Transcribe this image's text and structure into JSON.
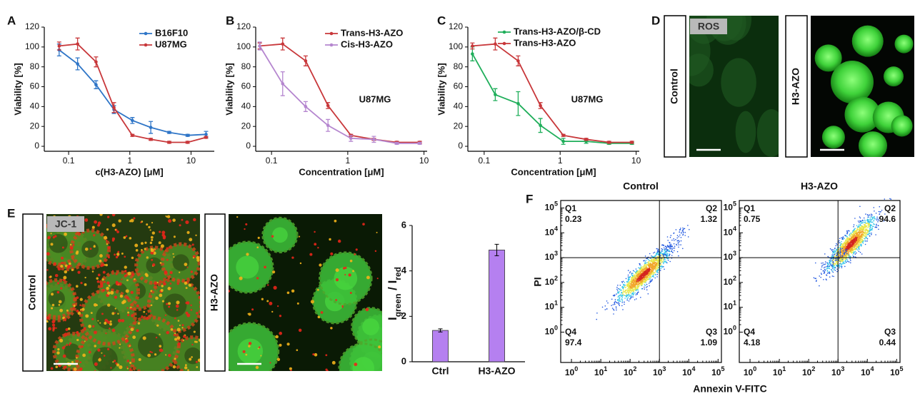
{
  "panel_labels": [
    "A",
    "B",
    "C",
    "D",
    "E",
    "F"
  ],
  "micrographs": {
    "D": {
      "tag": "ROS",
      "rows": [
        "Control",
        "H3-AZO"
      ]
    },
    "E": {
      "tag": "JC-1",
      "rows": [
        "Control",
        "H3-AZO"
      ]
    }
  },
  "chart_data": [
    {
      "type": "line",
      "xlabel": "c(H3-AZO) [μM]",
      "ylabel": "Viability [%]",
      "x": [
        0.07,
        0.14,
        0.28,
        0.55,
        1.1,
        2.2,
        4.4,
        8.8,
        17.6
      ],
      "xscale": "log",
      "xlim": [
        0.04,
        24
      ],
      "xticks": [
        0.1,
        1,
        10
      ],
      "ylim": [
        -5,
        120
      ],
      "yticks": [
        0,
        20,
        40,
        60,
        80,
        100,
        120
      ],
      "legend": "upper right",
      "series": [
        {
          "name": "B16F10",
          "color": "#2e75c7",
          "values": [
            97,
            83,
            62,
            37,
            26,
            19,
            14,
            11,
            12
          ],
          "errors": [
            6,
            6,
            4,
            4,
            3,
            6,
            1,
            1,
            3
          ]
        },
        {
          "name": "U87MG",
          "color": "#c8373a",
          "values": [
            101,
            103,
            85,
            39,
            11,
            7,
            4,
            4,
            9
          ],
          "errors": [
            4,
            6,
            5,
            5,
            1,
            1,
            1,
            1,
            1
          ]
        }
      ]
    },
    {
      "type": "line",
      "xlabel": "Concentration [μM]",
      "ylabel": "Viability [%]",
      "annotation": "U87MG",
      "x": [
        0.07,
        0.14,
        0.28,
        0.55,
        1.1,
        2.2,
        4.4,
        8.8
      ],
      "xscale": "log",
      "xlim": [
        0.062,
        11
      ],
      "xticks": [
        0.1,
        1,
        10
      ],
      "ylim": [
        -5,
        120
      ],
      "yticks": [
        0,
        20,
        40,
        60,
        80,
        100,
        120
      ],
      "legend": "upper right",
      "series": [
        {
          "name": "Trans-H3-AZO",
          "color": "#c8373a",
          "values": [
            101,
            103,
            86,
            41,
            11,
            7,
            4,
            4
          ],
          "errors": [
            3,
            6,
            5,
            3,
            1,
            1,
            1,
            1
          ]
        },
        {
          "name": "Cis-H3-AZO",
          "color": "#b586cf",
          "values": [
            101,
            63,
            40,
            21,
            8,
            7,
            3,
            3
          ],
          "errors": [
            4,
            12,
            5,
            6,
            3,
            3,
            1,
            1
          ]
        }
      ]
    },
    {
      "type": "line",
      "xlabel": "Concentration [μM]",
      "ylabel": "Viability [%]",
      "annotation": "U87MG",
      "x": [
        0.07,
        0.14,
        0.28,
        0.55,
        1.1,
        2.2,
        4.4,
        8.8
      ],
      "xscale": "log",
      "xlim": [
        0.061,
        11
      ],
      "xticks": [
        0.1,
        1,
        10
      ],
      "ylim": [
        -5,
        120
      ],
      "yticks": [
        0,
        20,
        40,
        60,
        80,
        100,
        120
      ],
      "legend": "upper left",
      "series": [
        {
          "name": "Trans-H3-AZO/β-CD",
          "color": "#1fae5a",
          "values": [
            93,
            52,
            43,
            21,
            5,
            5,
            3,
            3
          ],
          "errors": [
            7,
            6,
            12,
            7,
            3,
            2,
            1,
            1
          ]
        },
        {
          "name": "Trans-H3-AZO",
          "color": "#c8373a",
          "values": [
            101,
            103,
            86,
            41,
            11,
            7,
            4,
            4
          ],
          "errors": [
            3,
            6,
            5,
            3,
            1,
            1,
            1,
            1
          ]
        }
      ]
    },
    {
      "type": "bar",
      "ylabel": [
        "I",
        "green",
        " / I",
        "red"
      ],
      "categories": [
        "Ctrl",
        "H3-AZO"
      ],
      "values": [
        1.38,
        4.92
      ],
      "errors": [
        0.07,
        0.25
      ],
      "color": "#b580f0",
      "ylim": [
        0,
        6
      ],
      "yticks": [
        0,
        2,
        4,
        6
      ]
    },
    {
      "type": "flow",
      "title": "Control",
      "xlabel": "Annexin V-FITC",
      "ylabel": "PI",
      "xscale": "log",
      "yscale": "log",
      "xlim": [
        0.43,
        130000
      ],
      "ylim": [
        0.06,
        200000
      ],
      "xticks": [
        {
          "value": 1,
          "label": "10",
          "sup": "0"
        },
        {
          "value": 10,
          "label": "10",
          "sup": "1"
        },
        {
          "value": 100,
          "label": "10",
          "sup": "2"
        },
        {
          "value": 1000,
          "label": "10",
          "sup": "3"
        },
        {
          "value": 10000,
          "label": "10",
          "sup": "4"
        },
        {
          "value": 100000,
          "label": "10",
          "sup": "5"
        }
      ],
      "yticks": [
        {
          "value": 1,
          "label": "10",
          "sup": "0"
        },
        {
          "value": 10,
          "label": "10",
          "sup": "1"
        },
        {
          "value": 100,
          "label": "10",
          "sup": "2"
        },
        {
          "value": 1000,
          "label": "10",
          "sup": "3"
        },
        {
          "value": 10000,
          "label": "10",
          "sup": "4"
        },
        {
          "value": 100000,
          "label": "10",
          "sup": "5"
        }
      ],
      "gate": [
        1000,
        1000
      ],
      "quadrants": [
        {
          "name": "Q1",
          "value": 0.23
        },
        {
          "name": "Q2",
          "value": 1.32
        },
        {
          "name": "Q4",
          "value": 97.4
        },
        {
          "name": "Q3",
          "value": 1.09
        }
      ]
    },
    {
      "type": "flow",
      "title": "H3-AZO",
      "xscale": "log",
      "yscale": "log",
      "xlim": [
        0.43,
        130000
      ],
      "ylim": [
        0.06,
        200000
      ],
      "xticks": [
        {
          "value": 1,
          "label": "10",
          "sup": "0"
        },
        {
          "value": 10,
          "label": "10",
          "sup": "1"
        },
        {
          "value": 100,
          "label": "10",
          "sup": "2"
        },
        {
          "value": 1000,
          "label": "10",
          "sup": "3"
        },
        {
          "value": 10000,
          "label": "10",
          "sup": "4"
        },
        {
          "value": 100000,
          "label": "10",
          "sup": "5"
        }
      ],
      "yticks": [
        {
          "value": 1,
          "label": "10",
          "sup": "0"
        },
        {
          "value": 10,
          "label": "10",
          "sup": "1"
        },
        {
          "value": 100,
          "label": "10",
          "sup": "2"
        },
        {
          "value": 1000,
          "label": "10",
          "sup": "3"
        },
        {
          "value": 10000,
          "label": "10",
          "sup": "4"
        },
        {
          "value": 100000,
          "label": "10",
          "sup": "5"
        }
      ],
      "gate": [
        1000,
        1000
      ],
      "quadrants": [
        {
          "name": "Q1",
          "value": 0.75
        },
        {
          "name": "Q2",
          "value": 94.6
        },
        {
          "name": "Q4",
          "value": 4.18
        },
        {
          "name": "Q3",
          "value": 0.44
        }
      ]
    }
  ]
}
